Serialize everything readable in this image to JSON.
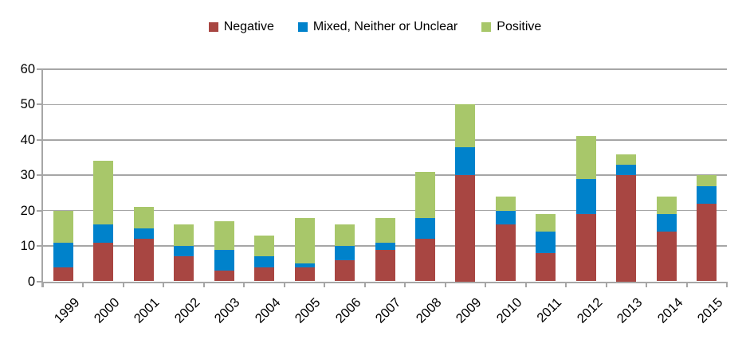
{
  "chart_data": {
    "type": "bar",
    "stacked": true,
    "title": "",
    "xlabel": "",
    "ylabel": "",
    "categories": [
      "1999",
      "2000",
      "2001",
      "2002",
      "2003",
      "2004",
      "2005",
      "2006",
      "2007",
      "2008",
      "2009",
      "2010",
      "2011",
      "2012",
      "2013",
      "2014",
      "2015"
    ],
    "series": [
      {
        "name": "Negative",
        "color": "#A84642",
        "values": [
          4,
          11,
          12,
          7,
          3,
          4,
          4,
          6,
          9,
          12,
          30,
          16,
          8,
          19,
          30,
          14,
          22
        ]
      },
      {
        "name": "Mixed, Neither or Unclear",
        "color": "#0082CB",
        "values": [
          7,
          5,
          3,
          3,
          6,
          3,
          1,
          4,
          2,
          6,
          8,
          4,
          6,
          10,
          3,
          5,
          5
        ]
      },
      {
        "name": "Positive",
        "color": "#A8C76A",
        "values": [
          9,
          18,
          6,
          6,
          8,
          6,
          13,
          6,
          7,
          13,
          12,
          4,
          5,
          12,
          3,
          5,
          3
        ]
      }
    ],
    "stack_totals": [
      20,
      34,
      21,
      16,
      17,
      13,
      18,
      16,
      18,
      31,
      50,
      24,
      19,
      41,
      36,
      24,
      30
    ],
    "ylim": [
      0,
      60
    ],
    "yticks": [
      0,
      10,
      20,
      30,
      40,
      50,
      60
    ],
    "grid": "horizontal",
    "legend_position": "top"
  },
  "colors": {
    "gridline": "#A6A6A6",
    "axis": "#A6A6A6",
    "text": "#000000",
    "background": "#FFFFFF"
  }
}
